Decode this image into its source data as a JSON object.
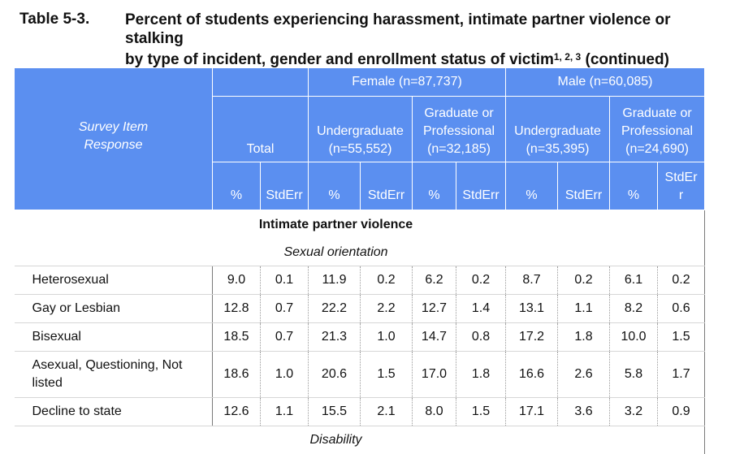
{
  "title": {
    "number": "Table 5-3.",
    "line1": "Percent of students experiencing harassment, intimate partner violence or stalking",
    "line2": "by type of incident, gender and enrollment status of victim",
    "superscript": "1, 2, 3",
    "suffix": "(continued)"
  },
  "header": {
    "corner_line1": "Survey Item",
    "corner_line2": "Response",
    "female": "Female (n=87,737)",
    "male": "Male (n=60,085)",
    "total": "Total",
    "f_ug_1": "Undergraduate",
    "f_ug_2": "(n=55,552)",
    "f_gp_1": "Graduate or",
    "f_gp_2": "Professional",
    "f_gp_3": "(n=32,185)",
    "m_ug_1": "Undergraduate",
    "m_ug_2": "(n=35,395)",
    "m_gp_1": "Graduate or",
    "m_gp_2": "Professional",
    "m_gp_3": "(n=24,690)",
    "pct": "%",
    "stderr": "StdErr",
    "stderr_split_1": "StdEr",
    "stderr_split_2": "r"
  },
  "section": "Intimate partner violence",
  "subsection": "Sexual orientation",
  "next_subsection": "Disability",
  "rows": [
    {
      "label": "Heterosexual",
      "label2": "",
      "vals": [
        "9.0",
        "0.1",
        "11.9",
        "0.2",
        "6.2",
        "0.2",
        "8.7",
        "0.2",
        "6.1",
        "0.2"
      ]
    },
    {
      "label": "Gay or Lesbian",
      "label2": "",
      "vals": [
        "12.8",
        "0.7",
        "22.2",
        "2.2",
        "12.7",
        "1.4",
        "13.1",
        "1.1",
        "8.2",
        "0.6"
      ]
    },
    {
      "label": "Bisexual",
      "label2": "",
      "vals": [
        "18.5",
        "0.7",
        "21.3",
        "1.0",
        "14.7",
        "0.8",
        "17.2",
        "1.8",
        "10.0",
        "1.5"
      ]
    },
    {
      "label": "Asexual, Questioning, Not",
      "label2": "listed",
      "vals": [
        "18.6",
        "1.0",
        "20.6",
        "1.5",
        "17.0",
        "1.8",
        "16.6",
        "2.6",
        "5.8",
        "1.7"
      ]
    },
    {
      "label": "Decline to state",
      "label2": "",
      "vals": [
        "12.6",
        "1.1",
        "15.5",
        "2.1",
        "8.0",
        "1.5",
        "17.1",
        "3.6",
        "3.2",
        "0.9"
      ]
    }
  ]
}
